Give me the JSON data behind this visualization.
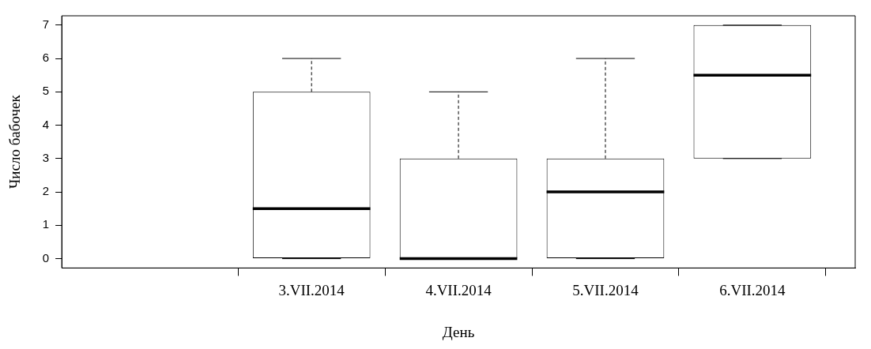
{
  "chart_data": {
    "type": "box",
    "xlabel": "День",
    "ylabel": "Число бабочек",
    "color": "#000000",
    "categories": [
      null,
      "3.VII.2014",
      "4.VII.2014",
      "5.VII.2014",
      "6.VII.2014"
    ],
    "boxes": [
      null,
      {
        "low": 0,
        "q1": 0,
        "median": 1.5,
        "q3": 5,
        "high": 6
      },
      {
        "low": 0,
        "q1": 0,
        "median": 0,
        "q3": 3,
        "high": 5
      },
      {
        "low": 0,
        "q1": 0,
        "median": 2,
        "q3": 3,
        "high": 6
      },
      {
        "low": 3,
        "q1": 3,
        "median": 5.5,
        "q3": 7,
        "high": 7
      }
    ],
    "ylim": [
      -0.28,
      7.28
    ],
    "yticks": [
      0,
      1,
      2,
      3,
      4,
      5,
      6,
      7
    ]
  }
}
